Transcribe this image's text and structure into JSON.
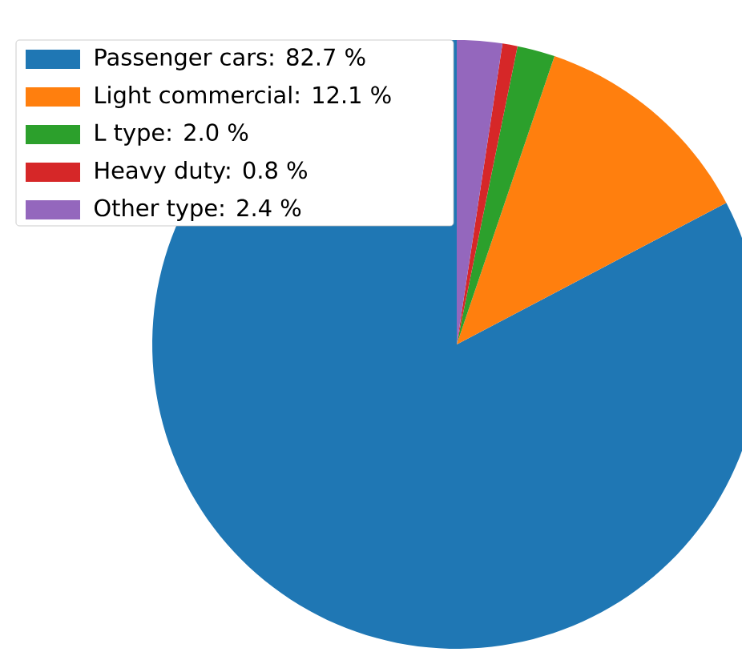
{
  "chart_data": {
    "type": "pie",
    "categories": [
      "Passenger cars: 82.7 %",
      "Light commercial: 12.1 %",
      "L type: 2.0 %",
      "Heavy duty: 0.8 %",
      "Other type: 2.4 %"
    ],
    "values": [
      82.7,
      12.1,
      2.0,
      0.8,
      2.4
    ],
    "colors": [
      "#1f77b4",
      "#ff7f0e",
      "#2ca02c",
      "#d62728",
      "#9467bd"
    ],
    "legend": "top left"
  }
}
